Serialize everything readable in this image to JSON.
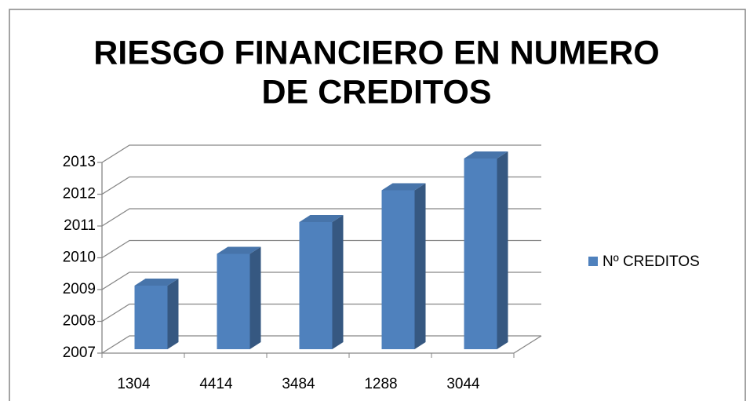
{
  "chart_data": {
    "type": "bar3d",
    "title": [
      "RIESGO FINANCIERO EN NUMERO",
      "DE CREDITOS"
    ],
    "categories": [
      "1304",
      "4414",
      "3484",
      "1288",
      "3044"
    ],
    "series": [
      {
        "name": "Nº CREDITOS",
        "color": "#4f81bd",
        "values": [
          2009,
          2010,
          2011,
          2012,
          2013
        ]
      }
    ],
    "ylim": [
      2007,
      2013
    ],
    "yticks": [
      2007,
      2008,
      2009,
      2010,
      2011,
      2012,
      2013
    ],
    "grid": true,
    "legend": "right"
  }
}
